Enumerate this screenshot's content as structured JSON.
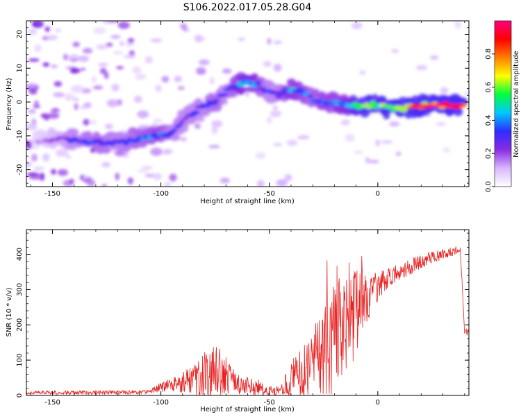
{
  "figure": {
    "title": "S106.2022.017.05.28.G04"
  },
  "chart_data": [
    {
      "type": "heatmap",
      "xlabel": "Height of straight line (km)",
      "ylabel": "Frequency (Hz)",
      "xlim": [
        -162,
        42
      ],
      "ylim": [
        -25,
        24
      ],
      "x_ticks": [
        -150,
        -100,
        -50,
        0
      ],
      "y_ticks": [
        20,
        10,
        0,
        -10,
        -20
      ],
      "colorbar": {
        "label": "Normalized spectral amplitude",
        "range": [
          0,
          1
        ],
        "ticks": [
          0.0,
          0.2,
          0.4,
          0.6,
          0.8
        ],
        "ticks_text": [
          "0.0",
          "0.2",
          "0.4",
          "0.6",
          "0.8"
        ],
        "colormap": [
          "#ffffff",
          "#d8b8ff",
          "#8a2be2",
          "#2d2dff",
          "#00c8ff",
          "#00ff40",
          "#ffff00",
          "#ff7f00",
          "#ff0000",
          "#ff0080"
        ]
      },
      "ridge": {
        "x": [
          -160,
          -150,
          -140,
          -130,
          -120,
          -110,
          -100,
          -95,
          -90,
          -85,
          -80,
          -75,
          -70,
          -65,
          -60,
          -55,
          -50,
          -45,
          -40,
          -35,
          -30,
          -25,
          -20,
          -15,
          -10,
          -5,
          0,
          5,
          10,
          20,
          30,
          40
        ],
        "y": [
          -12,
          -11,
          -11,
          -12,
          -12,
          -11,
          -10,
          -9,
          -6,
          -3,
          -1,
          0,
          3,
          5,
          6,
          5,
          3,
          2,
          4,
          3,
          1,
          0,
          0,
          -1,
          -1,
          -1,
          -1,
          -2,
          -2,
          -1,
          -1,
          -1
        ],
        "amplitude": [
          0.1,
          0.2,
          0.3,
          0.35,
          0.3,
          0.35,
          0.4,
          0.3,
          0.3,
          0.3,
          0.3,
          0.35,
          0.3,
          0.4,
          0.5,
          0.4,
          0.3,
          0.3,
          0.45,
          0.4,
          0.35,
          0.4,
          0.4,
          0.45,
          0.55,
          0.6,
          0.55,
          0.6,
          0.7,
          0.8,
          0.9,
          0.95
        ]
      }
    },
    {
      "type": "line",
      "xlabel": "Height of straight line (km)",
      "ylabel": "SNR (10 * v/v)",
      "xlim": [
        -162,
        42
      ],
      "ylim": [
        0,
        470
      ],
      "x_ticks": [
        -150,
        -100,
        -50,
        0
      ],
      "y_ticks": [
        0,
        100,
        200,
        300,
        400
      ],
      "color": "#e82020",
      "envelope": {
        "x": [
          -162,
          -140,
          -120,
          -105,
          -100,
          -95,
          -90,
          -85,
          -80,
          -75,
          -72,
          -70,
          -65,
          -60,
          -55,
          -50,
          -45,
          -40,
          -35,
          -30,
          -25,
          -22,
          -20,
          -15,
          -10,
          -8,
          -5,
          0,
          5,
          10,
          20,
          30,
          38,
          40,
          42
        ],
        "base": [
          8,
          8,
          8,
          10,
          25,
          30,
          35,
          45,
          55,
          60,
          70,
          55,
          30,
          25,
          20,
          15,
          10,
          40,
          60,
          80,
          100,
          110,
          180,
          200,
          230,
          250,
          270,
          310,
          330,
          350,
          380,
          400,
          415,
          180,
          180
        ],
        "amp": [
          5,
          6,
          6,
          5,
          15,
          20,
          30,
          50,
          70,
          80,
          85,
          60,
          30,
          30,
          25,
          15,
          15,
          60,
          80,
          120,
          160,
          180,
          150,
          140,
          130,
          110,
          80,
          40,
          30,
          25,
          20,
          15,
          10,
          10,
          10
        ]
      }
    }
  ]
}
